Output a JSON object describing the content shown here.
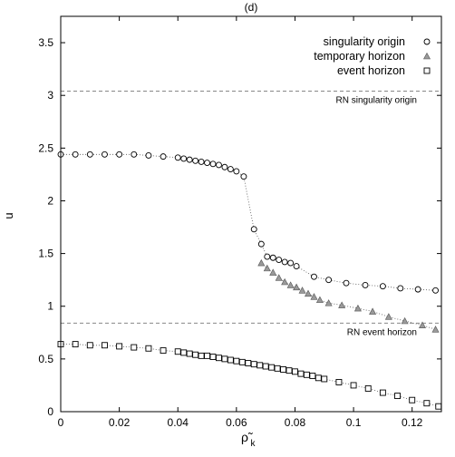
{
  "chart_data": {
    "type": "scatter",
    "title": "(d)",
    "xlabel": "ρ̃",
    "xlabel_sub": "k",
    "ylabel": "u",
    "xlim": [
      0,
      0.13
    ],
    "ylim": [
      0,
      3.75
    ],
    "xticks": [
      "0",
      "0.02",
      "0.04",
      "0.06",
      "0.08",
      "0.1",
      "0.12"
    ],
    "xtick_values": [
      0,
      0.02,
      0.04,
      0.06,
      0.08,
      0.1,
      0.12
    ],
    "yticks": [
      "0",
      "0.5",
      "1",
      "1.5",
      "2",
      "2.5",
      "3",
      "3.5"
    ],
    "ytick_values": [
      0,
      0.5,
      1,
      1.5,
      2,
      2.5,
      3,
      3.5
    ],
    "grid": false,
    "legend_position": "top-right",
    "reference_lines": [
      {
        "label": "RN singularity origin",
        "y": 3.04
      },
      {
        "label": "RN event horizon",
        "y": 0.84
      }
    ],
    "series": [
      {
        "name": "singularity origin",
        "marker": "circle",
        "points": [
          [
            0.0,
            2.44
          ],
          [
            0.005,
            2.44
          ],
          [
            0.01,
            2.44
          ],
          [
            0.015,
            2.44
          ],
          [
            0.02,
            2.44
          ],
          [
            0.025,
            2.44
          ],
          [
            0.03,
            2.43
          ],
          [
            0.035,
            2.42
          ],
          [
            0.04,
            2.41
          ],
          [
            0.042,
            2.4
          ],
          [
            0.044,
            2.39
          ],
          [
            0.046,
            2.38
          ],
          [
            0.048,
            2.37
          ],
          [
            0.05,
            2.36
          ],
          [
            0.052,
            2.35
          ],
          [
            0.054,
            2.34
          ],
          [
            0.056,
            2.32
          ],
          [
            0.058,
            2.3
          ],
          [
            0.06,
            2.28
          ],
          [
            0.0625,
            2.23
          ],
          [
            0.066,
            1.73
          ],
          [
            0.0685,
            1.59
          ],
          [
            0.0705,
            1.47
          ],
          [
            0.0725,
            1.46
          ],
          [
            0.0745,
            1.44
          ],
          [
            0.0765,
            1.42
          ],
          [
            0.0785,
            1.41
          ],
          [
            0.0805,
            1.38
          ],
          [
            0.0865,
            1.28
          ],
          [
            0.0915,
            1.25
          ],
          [
            0.0975,
            1.22
          ],
          [
            0.104,
            1.2
          ],
          [
            0.11,
            1.19
          ],
          [
            0.116,
            1.17
          ],
          [
            0.122,
            1.16
          ],
          [
            0.128,
            1.15
          ]
        ]
      },
      {
        "name": "temporary horizon",
        "marker": "triangle",
        "points": [
          [
            0.0685,
            1.41
          ],
          [
            0.0705,
            1.36
          ],
          [
            0.0725,
            1.32
          ],
          [
            0.0745,
            1.27
          ],
          [
            0.0765,
            1.23
          ],
          [
            0.0785,
            1.2
          ],
          [
            0.0805,
            1.18
          ],
          [
            0.0825,
            1.15
          ],
          [
            0.0845,
            1.12
          ],
          [
            0.0865,
            1.09
          ],
          [
            0.0885,
            1.06
          ],
          [
            0.0915,
            1.03
          ],
          [
            0.096,
            1.01
          ],
          [
            0.1015,
            0.98
          ],
          [
            0.1065,
            0.95
          ],
          [
            0.112,
            0.9
          ],
          [
            0.1175,
            0.86
          ],
          [
            0.1235,
            0.82
          ],
          [
            0.128,
            0.78
          ]
        ]
      },
      {
        "name": "event horizon",
        "marker": "square",
        "points": [
          [
            0.0,
            0.64
          ],
          [
            0.005,
            0.64
          ],
          [
            0.01,
            0.63
          ],
          [
            0.015,
            0.63
          ],
          [
            0.02,
            0.62
          ],
          [
            0.025,
            0.61
          ],
          [
            0.03,
            0.6
          ],
          [
            0.035,
            0.58
          ],
          [
            0.04,
            0.57
          ],
          [
            0.042,
            0.56
          ],
          [
            0.044,
            0.55
          ],
          [
            0.046,
            0.54
          ],
          [
            0.048,
            0.53
          ],
          [
            0.05,
            0.53
          ],
          [
            0.052,
            0.52
          ],
          [
            0.054,
            0.51
          ],
          [
            0.056,
            0.5
          ],
          [
            0.058,
            0.49
          ],
          [
            0.06,
            0.48
          ],
          [
            0.062,
            0.47
          ],
          [
            0.064,
            0.46
          ],
          [
            0.066,
            0.45
          ],
          [
            0.068,
            0.44
          ],
          [
            0.07,
            0.43
          ],
          [
            0.072,
            0.42
          ],
          [
            0.074,
            0.41
          ],
          [
            0.076,
            0.4
          ],
          [
            0.078,
            0.39
          ],
          [
            0.08,
            0.38
          ],
          [
            0.082,
            0.36
          ],
          [
            0.084,
            0.35
          ],
          [
            0.086,
            0.34
          ],
          [
            0.088,
            0.32
          ],
          [
            0.09,
            0.31
          ],
          [
            0.095,
            0.28
          ],
          [
            0.1,
            0.25
          ],
          [
            0.105,
            0.22
          ],
          [
            0.11,
            0.18
          ],
          [
            0.115,
            0.15
          ],
          [
            0.12,
            0.11
          ],
          [
            0.125,
            0.08
          ],
          [
            0.129,
            0.05
          ]
        ]
      }
    ]
  }
}
